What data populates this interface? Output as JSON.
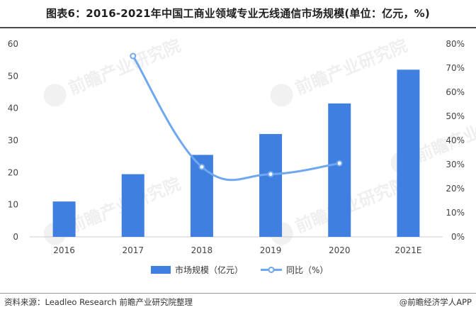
{
  "title": "图表6：2016-2021年中国工商业领域专业无线通信市场规模(单位：亿元，%)",
  "source": "资料来源：Leadleo Research 前瞻产业研究院整理",
  "brand": "@前瞻经济学人APP",
  "watermark": "前瞻产业研究院",
  "colors": {
    "bar": "#3f7fdf",
    "line": "#6fa8f0",
    "title": "#1f1f1f"
  },
  "chart_data": {
    "type": "bar",
    "categories": [
      "2016",
      "2017",
      "2018",
      "2019",
      "2020",
      "2021E"
    ],
    "ylim": [
      0,
      60
    ],
    "yticks": [
      "0",
      "10",
      "20",
      "30",
      "40",
      "50",
      "60"
    ],
    "y2lim": [
      0,
      80
    ],
    "y2ticks": [
      "0%",
      "10%",
      "20%",
      "30%",
      "40%",
      "50%",
      "60%",
      "70%",
      "80%"
    ],
    "legend_position": "bottom",
    "series": [
      {
        "name": "市场规模（亿元）",
        "type": "bar",
        "axis": "left",
        "values": [
          11,
          19.5,
          25.5,
          32,
          41.5,
          52
        ]
      },
      {
        "name": "同比（%）",
        "type": "line",
        "axis": "right",
        "smooth": true,
        "values": [
          null,
          75,
          29,
          26,
          30.5,
          null
        ]
      }
    ]
  }
}
